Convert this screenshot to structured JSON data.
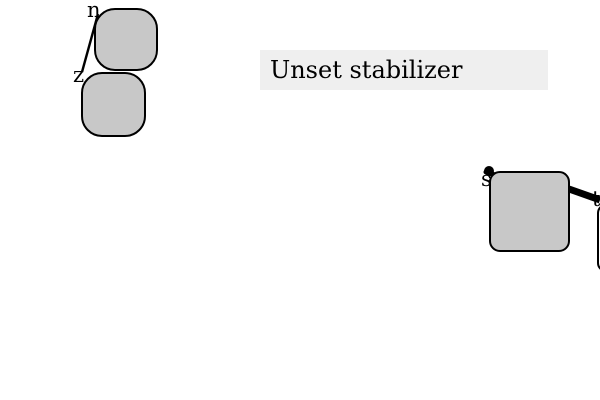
{
  "title": {
    "text": "Unset stabilizer"
  },
  "nodes": {
    "n": {
      "label": "n"
    },
    "z": {
      "label": "z"
    },
    "s": {
      "label": "s"
    },
    "t": {
      "label": "t"
    }
  },
  "colors": {
    "node_fill": "#c8c8c8",
    "stroke": "#000000",
    "title_background": "#efefef",
    "page_background": "#ffffff"
  }
}
